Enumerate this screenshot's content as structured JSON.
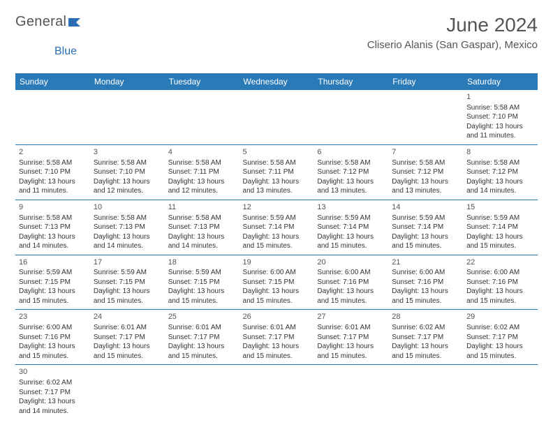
{
  "brand": {
    "text1": "General",
    "text2": "Blue"
  },
  "title": "June 2024",
  "location": "Cliserio Alanis (San Gaspar), Mexico",
  "headers": [
    "Sunday",
    "Monday",
    "Tuesday",
    "Wednesday",
    "Thursday",
    "Friday",
    "Saturday"
  ],
  "colors": {
    "header_bg": "#2a7ab8",
    "header_fg": "#ffffff",
    "rule": "#2a7ab8",
    "text": "#333333",
    "title": "#555555"
  },
  "weeks": [
    [
      null,
      null,
      null,
      null,
      null,
      null,
      {
        "n": "1",
        "sr": "5:58 AM",
        "ss": "7:10 PM",
        "dl": "13 hours and 11 minutes."
      }
    ],
    [
      {
        "n": "2",
        "sr": "5:58 AM",
        "ss": "7:10 PM",
        "dl": "13 hours and 11 minutes."
      },
      {
        "n": "3",
        "sr": "5:58 AM",
        "ss": "7:10 PM",
        "dl": "13 hours and 12 minutes."
      },
      {
        "n": "4",
        "sr": "5:58 AM",
        "ss": "7:11 PM",
        "dl": "13 hours and 12 minutes."
      },
      {
        "n": "5",
        "sr": "5:58 AM",
        "ss": "7:11 PM",
        "dl": "13 hours and 13 minutes."
      },
      {
        "n": "6",
        "sr": "5:58 AM",
        "ss": "7:12 PM",
        "dl": "13 hours and 13 minutes."
      },
      {
        "n": "7",
        "sr": "5:58 AM",
        "ss": "7:12 PM",
        "dl": "13 hours and 13 minutes."
      },
      {
        "n": "8",
        "sr": "5:58 AM",
        "ss": "7:12 PM",
        "dl": "13 hours and 14 minutes."
      }
    ],
    [
      {
        "n": "9",
        "sr": "5:58 AM",
        "ss": "7:13 PM",
        "dl": "13 hours and 14 minutes."
      },
      {
        "n": "10",
        "sr": "5:58 AM",
        "ss": "7:13 PM",
        "dl": "13 hours and 14 minutes."
      },
      {
        "n": "11",
        "sr": "5:58 AM",
        "ss": "7:13 PM",
        "dl": "13 hours and 14 minutes."
      },
      {
        "n": "12",
        "sr": "5:59 AM",
        "ss": "7:14 PM",
        "dl": "13 hours and 15 minutes."
      },
      {
        "n": "13",
        "sr": "5:59 AM",
        "ss": "7:14 PM",
        "dl": "13 hours and 15 minutes."
      },
      {
        "n": "14",
        "sr": "5:59 AM",
        "ss": "7:14 PM",
        "dl": "13 hours and 15 minutes."
      },
      {
        "n": "15",
        "sr": "5:59 AM",
        "ss": "7:14 PM",
        "dl": "13 hours and 15 minutes."
      }
    ],
    [
      {
        "n": "16",
        "sr": "5:59 AM",
        "ss": "7:15 PM",
        "dl": "13 hours and 15 minutes."
      },
      {
        "n": "17",
        "sr": "5:59 AM",
        "ss": "7:15 PM",
        "dl": "13 hours and 15 minutes."
      },
      {
        "n": "18",
        "sr": "5:59 AM",
        "ss": "7:15 PM",
        "dl": "13 hours and 15 minutes."
      },
      {
        "n": "19",
        "sr": "6:00 AM",
        "ss": "7:15 PM",
        "dl": "13 hours and 15 minutes."
      },
      {
        "n": "20",
        "sr": "6:00 AM",
        "ss": "7:16 PM",
        "dl": "13 hours and 15 minutes."
      },
      {
        "n": "21",
        "sr": "6:00 AM",
        "ss": "7:16 PM",
        "dl": "13 hours and 15 minutes."
      },
      {
        "n": "22",
        "sr": "6:00 AM",
        "ss": "7:16 PM",
        "dl": "13 hours and 15 minutes."
      }
    ],
    [
      {
        "n": "23",
        "sr": "6:00 AM",
        "ss": "7:16 PM",
        "dl": "13 hours and 15 minutes."
      },
      {
        "n": "24",
        "sr": "6:01 AM",
        "ss": "7:17 PM",
        "dl": "13 hours and 15 minutes."
      },
      {
        "n": "25",
        "sr": "6:01 AM",
        "ss": "7:17 PM",
        "dl": "13 hours and 15 minutes."
      },
      {
        "n": "26",
        "sr": "6:01 AM",
        "ss": "7:17 PM",
        "dl": "13 hours and 15 minutes."
      },
      {
        "n": "27",
        "sr": "6:01 AM",
        "ss": "7:17 PM",
        "dl": "13 hours and 15 minutes."
      },
      {
        "n": "28",
        "sr": "6:02 AM",
        "ss": "7:17 PM",
        "dl": "13 hours and 15 minutes."
      },
      {
        "n": "29",
        "sr": "6:02 AM",
        "ss": "7:17 PM",
        "dl": "13 hours and 15 minutes."
      }
    ],
    [
      {
        "n": "30",
        "sr": "6:02 AM",
        "ss": "7:17 PM",
        "dl": "13 hours and 14 minutes."
      },
      null,
      null,
      null,
      null,
      null,
      null
    ]
  ],
  "labels": {
    "sunrise": "Sunrise:",
    "sunset": "Sunset:",
    "daylight": "Daylight:"
  }
}
